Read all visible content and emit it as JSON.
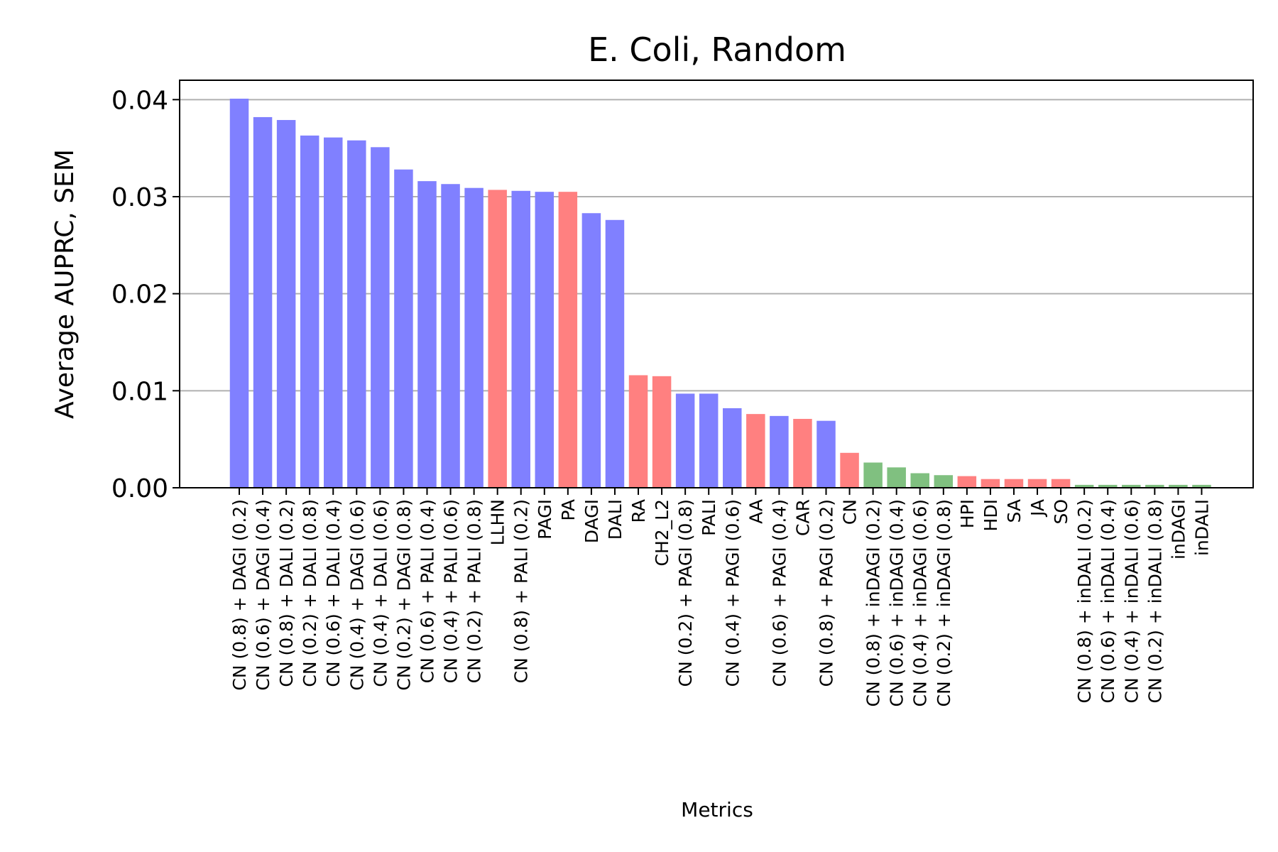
{
  "chart_data": {
    "type": "bar",
    "title": "E. Coli, Random",
    "xlabel": "Metrics",
    "ylabel": "Average AUPRC, SEM",
    "ylim": [
      0,
      0.042
    ],
    "yticks": [
      "0.00",
      "0.01",
      "0.02",
      "0.03",
      "0.04"
    ],
    "ytick_values": [
      0,
      0.01,
      0.02,
      0.03,
      0.04
    ],
    "grid": "horizontal",
    "colors": {
      "blue": "#8080ff",
      "red": "#ff8080",
      "green": "#80c080"
    },
    "categories": [
      "CN (0.8) + DAGI (0.2)",
      "CN (0.6) + DAGI (0.4)",
      "CN (0.8) + DALI (0.2)",
      "CN (0.2) + DALI (0.8)",
      "CN (0.6) + DALI (0.4)",
      "CN (0.4) + DAGI (0.6)",
      "CN (0.4) + DALI (0.6)",
      "CN (0.2) + DAGI (0.8)",
      "CN (0.6) + PALI (0.4)",
      "CN (0.4) + PALI (0.6)",
      "CN (0.2) + PALI (0.8)",
      "LLHN",
      "CN (0.8) + PALI (0.2)",
      "PAGI",
      "PA",
      "DAGI",
      "DALI",
      "RA",
      "CH2_L2",
      "CN (0.2) + PAGI (0.8)",
      "PALI",
      "CN (0.4) + PAGI (0.6)",
      "AA",
      "CN (0.6) + PAGI (0.4)",
      "CAR",
      "CN (0.8) + PAGI (0.2)",
      "CN",
      "CN (0.8) + inDAGI (0.2)",
      "CN (0.6) + inDAGI (0.4)",
      "CN (0.4) + inDAGI (0.6)",
      "CN (0.2) + inDAGI (0.8)",
      "HPI",
      "HDI",
      "SA",
      "JA",
      "SO",
      "CN (0.8) + inDALI (0.2)",
      "CN (0.6) + inDALI (0.4)",
      "CN (0.4) + inDALI (0.6)",
      "CN (0.2) + inDALI (0.8)",
      "inDAGI",
      "inDALI"
    ],
    "values": [
      0.0401,
      0.0382,
      0.0379,
      0.0363,
      0.0361,
      0.0358,
      0.0351,
      0.0328,
      0.0316,
      0.0313,
      0.0309,
      0.0307,
      0.0306,
      0.0305,
      0.0305,
      0.0283,
      0.0276,
      0.0116,
      0.0115,
      0.0097,
      0.0097,
      0.0082,
      0.0076,
      0.0074,
      0.0071,
      0.0069,
      0.0036,
      0.0026,
      0.0021,
      0.0015,
      0.0013,
      0.0012,
      0.0009,
      0.0009,
      0.0009,
      0.0009,
      0.0003,
      0.0003,
      0.0003,
      0.0003,
      0.0003,
      0.0003
    ],
    "bar_colors": [
      "blue",
      "blue",
      "blue",
      "blue",
      "blue",
      "blue",
      "blue",
      "blue",
      "blue",
      "blue",
      "blue",
      "red",
      "blue",
      "blue",
      "red",
      "blue",
      "blue",
      "red",
      "red",
      "blue",
      "blue",
      "blue",
      "red",
      "blue",
      "red",
      "blue",
      "red",
      "green",
      "green",
      "green",
      "green",
      "red",
      "red",
      "red",
      "red",
      "red",
      "green",
      "green",
      "green",
      "green",
      "green",
      "green"
    ]
  }
}
